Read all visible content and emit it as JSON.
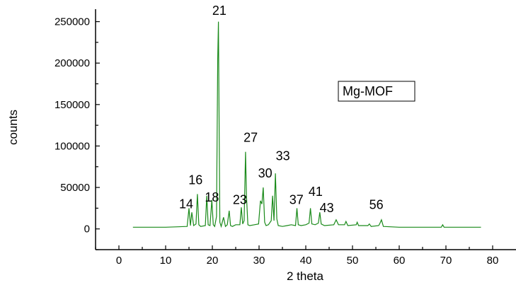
{
  "chart_data": {
    "type": "line",
    "xlabel": "2 theta",
    "ylabel": "counts",
    "xlim": [
      -5,
      85
    ],
    "ylim": [
      -25000,
      265000
    ],
    "x_ticks": [
      0,
      10,
      20,
      30,
      40,
      50,
      60,
      70,
      80
    ],
    "y_ticks": [
      0,
      50000,
      100000,
      150000,
      200000,
      250000
    ],
    "legend": "Mg-MOF",
    "legend_placement": "upper-right",
    "series_color": "#1a8a1a",
    "series": [
      {
        "name": "Mg-MOF",
        "x": [
          3.0,
          10.0,
          14.6,
          15.0,
          15.3,
          15.6,
          16.0,
          16.5,
          16.8,
          17.1,
          17.5,
          18.5,
          18.8,
          19.1,
          19.5,
          19.9,
          20.2,
          20.5,
          20.9,
          21.15,
          21.3,
          21.45,
          21.6,
          21.9,
          22.4,
          22.8,
          23.2,
          23.6,
          23.9,
          24.3,
          25.0,
          25.9,
          26.2,
          26.5,
          26.8,
          27.1,
          27.3,
          27.6,
          28.0,
          29.0,
          29.9,
          30.3,
          30.6,
          30.9,
          31.2,
          31.5,
          32.0,
          32.6,
          32.9,
          33.2,
          33.5,
          33.8,
          34.1,
          35.0,
          36.0,
          36.9,
          37.8,
          38.1,
          38.4,
          39.0,
          40.0,
          40.7,
          41.0,
          41.3,
          42.0,
          42.7,
          43.0,
          43.3,
          44.0,
          46.0,
          46.5,
          47.0,
          48.3,
          48.6,
          49.0,
          50.8,
          51.0,
          51.3,
          53.3,
          53.6,
          54.0,
          55.6,
          55.9,
          56.2,
          56.6,
          60.0,
          65.0,
          69.0,
          69.3,
          69.6,
          73.0,
          77.5
        ],
        "y": [
          2000,
          2000,
          3000,
          25000,
          4000,
          20000,
          4000,
          6000,
          42000,
          5000,
          3000,
          4000,
          40000,
          5000,
          4000,
          35000,
          5000,
          3000,
          15000,
          205000,
          250000,
          125000,
          8000,
          3000,
          14000,
          3000,
          5000,
          22000,
          4000,
          3000,
          5000,
          5000,
          26000,
          6000,
          10000,
          93000,
          40000,
          5000,
          4000,
          5000,
          6000,
          34000,
          30000,
          50000,
          8000,
          4000,
          5000,
          10000,
          40000,
          10000,
          67000,
          12000,
          4000,
          3000,
          4000,
          5000,
          4000,
          25000,
          5000,
          4000,
          5000,
          7000,
          25000,
          6000,
          5000,
          7000,
          20000,
          6000,
          4000,
          5000,
          11000,
          5000,
          5000,
          9000,
          4000,
          5000,
          8000,
          4000,
          4000,
          6000,
          3000,
          4000,
          7000,
          11000,
          3000,
          2000,
          2000,
          2000,
          5000,
          2000,
          2000,
          2000
        ]
      }
    ],
    "annotations": [
      {
        "text": "14",
        "x": 14.4,
        "y": 25000
      },
      {
        "text": "16",
        "x": 16.4,
        "y": 54000
      },
      {
        "text": "18",
        "x": 19.9,
        "y": 33000
      },
      {
        "text": "21",
        "x": 21.5,
        "y": 258000
      },
      {
        "text": "23",
        "x": 25.9,
        "y": 30000
      },
      {
        "text": "27",
        "x": 28.2,
        "y": 105000
      },
      {
        "text": "30",
        "x": 31.3,
        "y": 62000
      },
      {
        "text": "33",
        "x": 35.1,
        "y": 83000
      },
      {
        "text": "37",
        "x": 38.0,
        "y": 30000
      },
      {
        "text": "41",
        "x": 42.1,
        "y": 40000
      },
      {
        "text": "43",
        "x": 44.5,
        "y": 20000
      },
      {
        "text": "56",
        "x": 55.1,
        "y": 24000
      }
    ]
  }
}
